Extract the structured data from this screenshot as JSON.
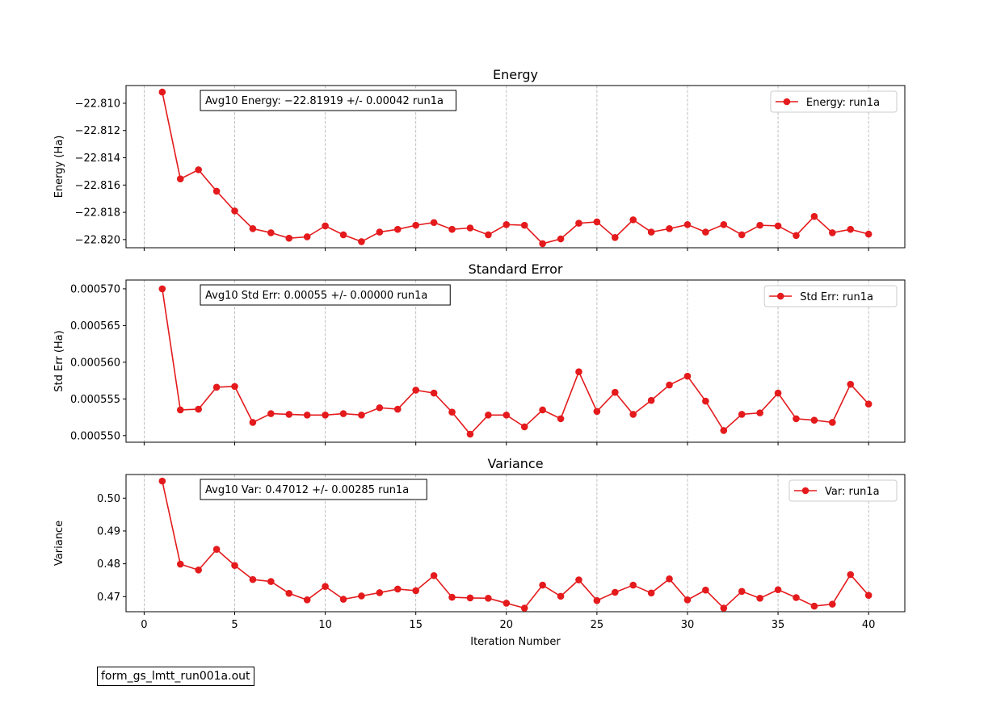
{
  "footer": {
    "filename": "form_gs_lmtt_run001a.out"
  },
  "shared_x": {
    "xlabel": "Iteration Number",
    "xticks": [
      0,
      5,
      10,
      15,
      20,
      25,
      30,
      35,
      40
    ],
    "xlim": [
      -1,
      42
    ],
    "grid": "vertical dashed at x ticks"
  },
  "colors": {
    "series": "#e41a1c",
    "grid": "#b0b0b0"
  },
  "chart_data": [
    {
      "type": "line",
      "title": "Energy",
      "ylabel": "Energy (Ha)",
      "ylim": [
        -22.8206,
        -22.8087
      ],
      "yticks": [
        -22.81,
        -22.812,
        -22.814,
        -22.816,
        -22.818,
        -22.82
      ],
      "ytick_labels": [
        "−22.810",
        "−22.812",
        "−22.814",
        "−22.816",
        "−22.818",
        "−22.820"
      ],
      "annotation": "Avg10 Energy: −22.81919 +/- 0.00042  run1a",
      "legend_position": "top-right",
      "series": [
        {
          "name": "Energy: run1a",
          "x": [
            1,
            2,
            3,
            4,
            5,
            6,
            7,
            8,
            9,
            10,
            11,
            12,
            13,
            14,
            15,
            16,
            17,
            18,
            19,
            20,
            21,
            22,
            23,
            24,
            25,
            26,
            27,
            28,
            29,
            30,
            31,
            32,
            33,
            34,
            35,
            36,
            37,
            38,
            39,
            40
          ],
          "values": [
            -22.80918,
            -22.81555,
            -22.81488,
            -22.81645,
            -22.8179,
            -22.8192,
            -22.8195,
            -22.8199,
            -22.8198,
            -22.819,
            -22.81965,
            -22.82015,
            -22.81945,
            -22.81925,
            -22.81895,
            -22.81875,
            -22.81925,
            -22.81915,
            -22.81965,
            -22.8189,
            -22.81895,
            -22.8203,
            -22.81995,
            -22.8188,
            -22.8187,
            -22.81985,
            -22.81855,
            -22.81945,
            -22.8192,
            -22.8189,
            -22.81945,
            -22.8189,
            -22.81965,
            -22.81895,
            -22.819,
            -22.8197,
            -22.8183,
            -22.8195,
            -22.81925,
            -22.8196
          ]
        }
      ]
    },
    {
      "type": "line",
      "title": "Standard Error",
      "ylabel": "Std Err (Ha)",
      "ylim": [
        0.0005491,
        0.0005712
      ],
      "yticks": [
        0.00057,
        0.000565,
        0.00056,
        0.000555,
        0.00055
      ],
      "ytick_labels": [
        "0.000570",
        "0.000565",
        "0.000560",
        "0.000555",
        "0.000550"
      ],
      "annotation": "Avg10 Std Err: 0.00055 +/- 0.00000  run1a",
      "legend_position": "top-right",
      "series": [
        {
          "name": "Std Err: run1a",
          "x": [
            1,
            2,
            3,
            4,
            5,
            6,
            7,
            8,
            9,
            10,
            11,
            12,
            13,
            14,
            15,
            16,
            17,
            18,
            19,
            20,
            21,
            22,
            23,
            24,
            25,
            26,
            27,
            28,
            29,
            30,
            31,
            32,
            33,
            34,
            35,
            36,
            37,
            38,
            39,
            40
          ],
          "values": [
            0.00057,
            0.0005535,
            0.0005536,
            0.0005566,
            0.0005567,
            0.0005518,
            0.000553,
            0.0005529,
            0.0005528,
            0.0005528,
            0.000553,
            0.0005528,
            0.0005538,
            0.0005536,
            0.0005562,
            0.0005558,
            0.0005532,
            0.0005502,
            0.0005528,
            0.0005528,
            0.0005512,
            0.0005535,
            0.0005523,
            0.0005587,
            0.0005533,
            0.0005559,
            0.0005529,
            0.0005548,
            0.0005569,
            0.0005581,
            0.0005547,
            0.0005507,
            0.0005529,
            0.0005531,
            0.0005558,
            0.0005523,
            0.0005521,
            0.0005518,
            0.000557,
            0.0005543
          ]
        }
      ]
    },
    {
      "type": "line",
      "title": "Variance",
      "ylabel": "Variance",
      "ylim": [
        0.4654,
        0.5072
      ],
      "yticks": [
        0.5,
        0.49,
        0.48,
        0.47
      ],
      "ytick_labels": [
        "0.50",
        "0.49",
        "0.48",
        "0.47"
      ],
      "annotation": "Avg10 Var: 0.47012 +/- 0.00285  run1a",
      "legend_position": "top-right",
      "series": [
        {
          "name": "Var: run1a",
          "x": [
            1,
            2,
            3,
            4,
            5,
            6,
            7,
            8,
            9,
            10,
            11,
            12,
            13,
            14,
            15,
            16,
            17,
            18,
            19,
            20,
            21,
            22,
            23,
            24,
            25,
            26,
            27,
            28,
            29,
            30,
            31,
            32,
            33,
            34,
            35,
            36,
            37,
            38,
            39,
            40
          ],
          "values": [
            0.5052,
            0.4799,
            0.4781,
            0.4844,
            0.4795,
            0.4752,
            0.4746,
            0.471,
            0.469,
            0.4731,
            0.4692,
            0.4702,
            0.4712,
            0.4723,
            0.4718,
            0.4764,
            0.4698,
            0.4696,
            0.4695,
            0.468,
            0.4665,
            0.4735,
            0.4701,
            0.4751,
            0.4688,
            0.4713,
            0.4735,
            0.4711,
            0.4754,
            0.469,
            0.472,
            0.4665,
            0.4716,
            0.4695,
            0.4721,
            0.4697,
            0.4671,
            0.4677,
            0.4767,
            0.4704
          ]
        }
      ]
    }
  ]
}
